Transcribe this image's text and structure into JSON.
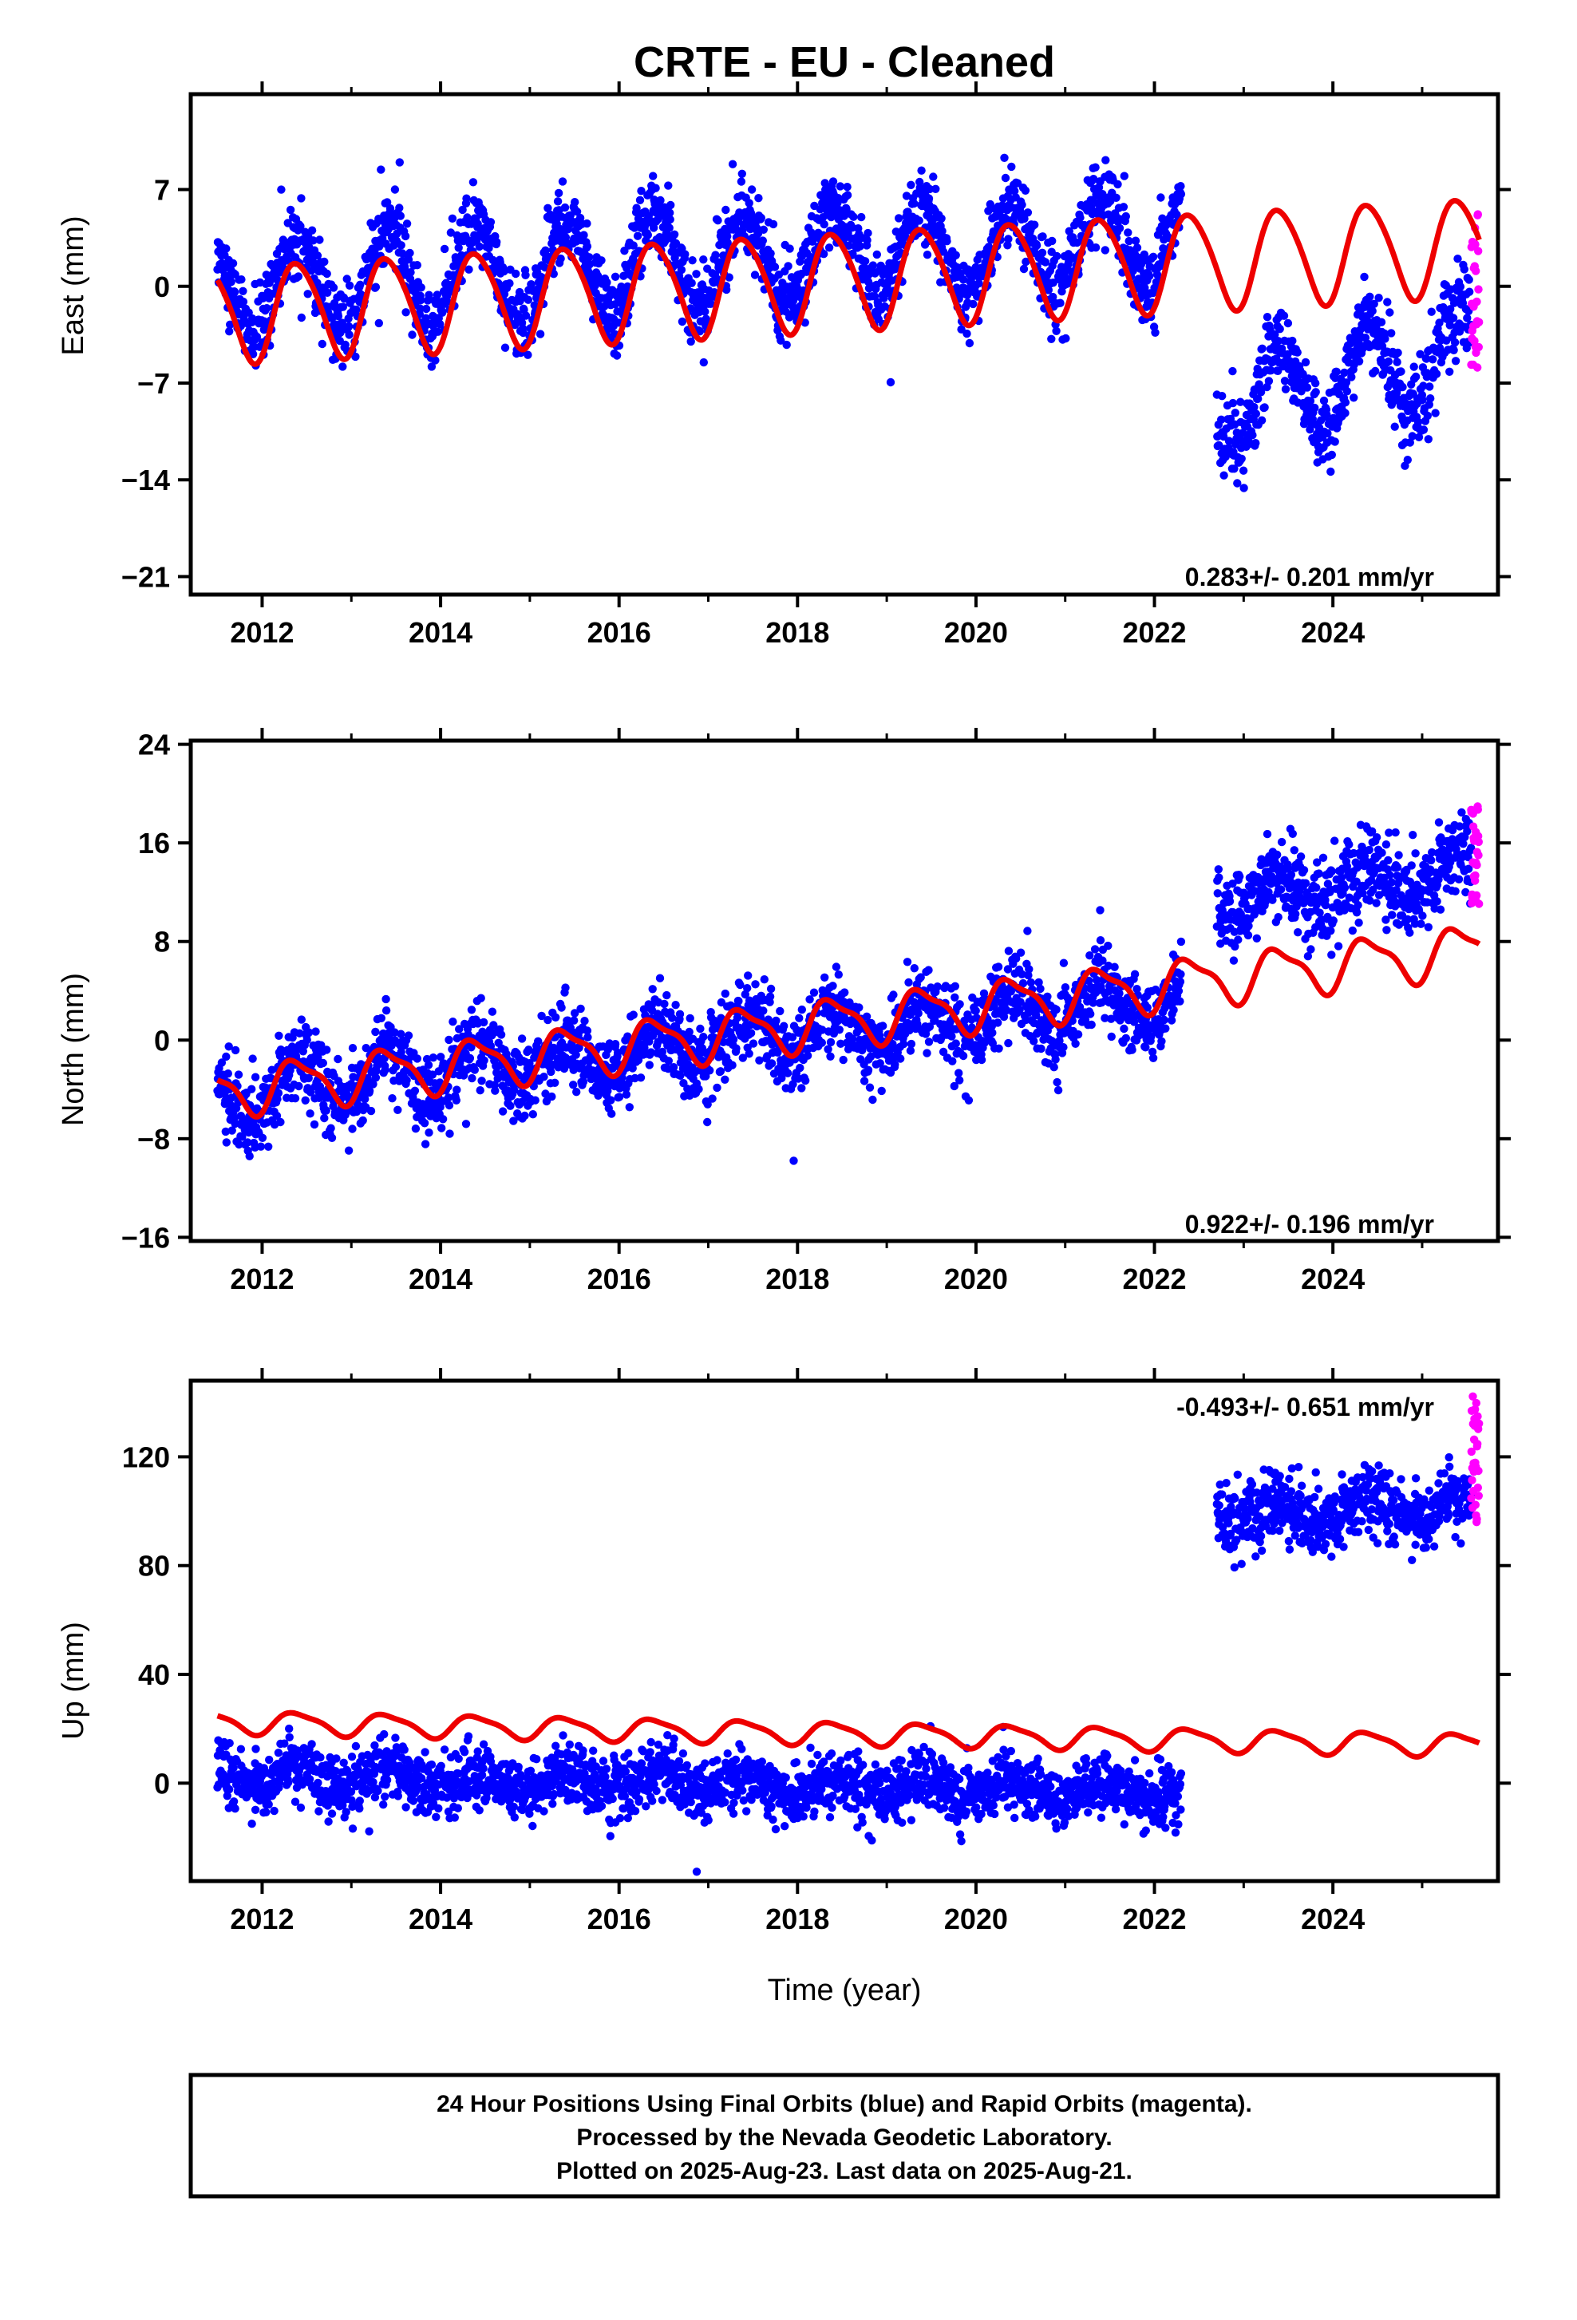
{
  "chart_data": {
    "type": "scatter",
    "title": "CRTE  - EU - Cleaned",
    "xlabel": "Time (year)",
    "xlim": [
      2011.2,
      2025.85
    ],
    "x_ticks": [
      "2012",
      "2014",
      "2016",
      "2018",
      "2020",
      "2022",
      "2024"
    ],
    "x_tick_values": [
      2012,
      2014,
      2016,
      2018,
      2020,
      2022,
      2024
    ],
    "grid": false,
    "colors": {
      "final": "#0000ff",
      "rapid": "#ff00ff",
      "model": "#ee0000"
    },
    "series_legend": [
      "24 Hour Positions Using Final Orbits (blue) and Rapid Orbits (magenta)."
    ],
    "panels": [
      {
        "name": "east",
        "ylabel": "East (mm)",
        "ylim": [
          -22.3,
          13.9
        ],
        "y_ticks": [
          "7",
          "0",
          "−7",
          "−14",
          "−21"
        ],
        "y_tick_values": [
          7,
          0,
          -7,
          -14,
          -21
        ],
        "rate_text": "0.283+/- 0.201 mm/yr",
        "rate_position": "bottom-right",
        "offset_year": 2022.75,
        "segments": [
          {
            "x_start": 2011.5,
            "x_end": 2022.3,
            "base": 0.0,
            "trend": 0.32,
            "annual_amp": 3.3,
            "noise": 1.4
          },
          {
            "x_start": 2022.7,
            "x_end": 2025.55,
            "base": -8.5,
            "trend": 1.4,
            "annual_amp": 3.3,
            "noise": 1.5
          }
        ],
        "rapid": {
          "x_start": 2025.55,
          "x_end": 2025.64,
          "y_min": -6,
          "y_max": 6
        },
        "model": {
          "x_start": 2011.5,
          "x_end": 2025.64,
          "base": -2.0,
          "trend": 0.35,
          "annual_amp": 3.5,
          "semiannual_amp": 0.4
        }
      },
      {
        "name": "north",
        "ylabel": "North (mm)",
        "ylim": [
          -16.3,
          24.3
        ],
        "y_ticks": [
          "24",
          "16",
          "8",
          "0",
          "−8",
          "−16"
        ],
        "y_tick_values": [
          24,
          16,
          8,
          0,
          -8,
          -16
        ],
        "rate_text": "0.922+/- 0.196 mm/yr",
        "rate_position": "bottom-right",
        "offset_year": 2022.75,
        "segments": [
          {
            "x_start": 2011.5,
            "x_end": 2022.3,
            "base": -4.5,
            "trend": 0.75,
            "annual_amp": 1.9,
            "noise": 1.6
          },
          {
            "x_start": 2022.7,
            "x_end": 2025.55,
            "base": 11.5,
            "trend": 0.8,
            "annual_amp": 1.2,
            "noise": 1.6
          }
        ],
        "rapid": {
          "x_start": 2025.55,
          "x_end": 2025.64,
          "y_min": 11,
          "y_max": 19
        },
        "model": {
          "x_start": 2011.5,
          "x_end": 2025.64,
          "base": -4.2,
          "trend": 0.82,
          "annual_amp": 1.9,
          "semiannual_amp": 0.6
        }
      },
      {
        "name": "up",
        "ylabel": "Up (mm)",
        "ylim": [
          -36,
          148
        ],
        "y_ticks": [
          "120",
          "80",
          "40",
          "0"
        ],
        "y_tick_values": [
          120,
          80,
          40,
          0
        ],
        "rate_text": "-0.493+/- 0.651 mm/yr",
        "rate_position": "top-right",
        "offset_year": 2022.75,
        "segments": [
          {
            "x_start": 2011.5,
            "x_end": 2022.3,
            "base": 2.0,
            "trend": -0.45,
            "annual_amp": 3.5,
            "noise": 5.5
          },
          {
            "x_start": 2022.7,
            "x_end": 2025.55,
            "base": 100.0,
            "trend": 0.0,
            "annual_amp": 3.5,
            "noise": 6.0
          }
        ],
        "rapid": {
          "x_start": 2025.55,
          "x_end": 2025.64,
          "y_min": 96,
          "y_max": 145
        },
        "model": {
          "x_start": 2011.5,
          "x_end": 2025.64,
          "base": 22.5,
          "trend": -0.6,
          "annual_amp": 4.0,
          "semiannual_amp": 1.0
        }
      }
    ]
  },
  "footer": {
    "line1": "24 Hour Positions Using Final Orbits (blue) and Rapid Orbits (magenta).",
    "line2": "Processed by the Nevada Geodetic Laboratory.",
    "line3": "Plotted on 2025-Aug-23. Last data on 2025-Aug-21."
  }
}
